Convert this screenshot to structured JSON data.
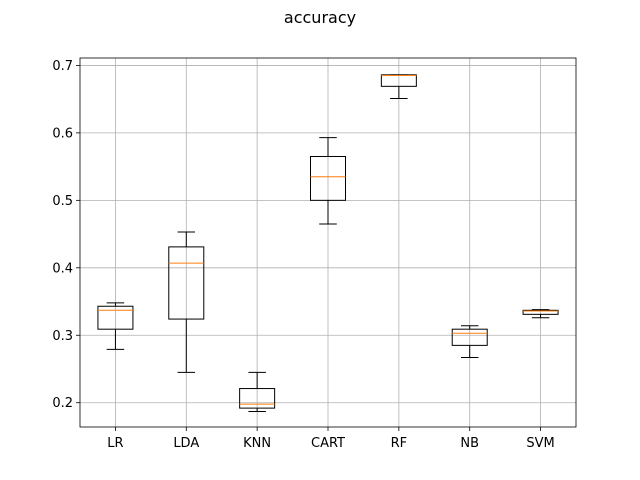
{
  "chart_data": {
    "type": "box",
    "title": "accuracy",
    "xlabel": "",
    "ylabel": "",
    "categories": [
      "LR",
      "LDA",
      "KNN",
      "CART",
      "RF",
      "NB",
      "SVM"
    ],
    "boxes": [
      {
        "label": "LR",
        "whislo": 0.279,
        "q1": 0.309,
        "med": 0.337,
        "q3": 0.343,
        "whishi": 0.348
      },
      {
        "label": "LDA",
        "whislo": 0.245,
        "q1": 0.324,
        "med": 0.407,
        "q3": 0.431,
        "whishi": 0.453
      },
      {
        "label": "KNN",
        "whislo": 0.187,
        "q1": 0.192,
        "med": 0.198,
        "q3": 0.221,
        "whishi": 0.245
      },
      {
        "label": "CART",
        "whislo": 0.465,
        "q1": 0.5,
        "med": 0.535,
        "q3": 0.565,
        "whishi": 0.593
      },
      {
        "label": "RF",
        "whislo": 0.651,
        "q1": 0.669,
        "med": 0.685,
        "q3": 0.686,
        "whishi": 0.686
      },
      {
        "label": "NB",
        "whislo": 0.267,
        "q1": 0.285,
        "med": 0.303,
        "q3": 0.309,
        "whishi": 0.314
      },
      {
        "label": "SVM",
        "whislo": 0.326,
        "q1": 0.331,
        "med": 0.336,
        "q3": 0.337,
        "whishi": 0.338
      }
    ],
    "yticks": [
      "0.2",
      "0.3",
      "0.4",
      "0.5",
      "0.6",
      "0.7"
    ],
    "ylim": [
      0.164,
      0.711
    ],
    "grid": true,
    "colors": {
      "box": "#000000",
      "median": "#ff7f0e",
      "grid": "#b0b0b0"
    }
  }
}
